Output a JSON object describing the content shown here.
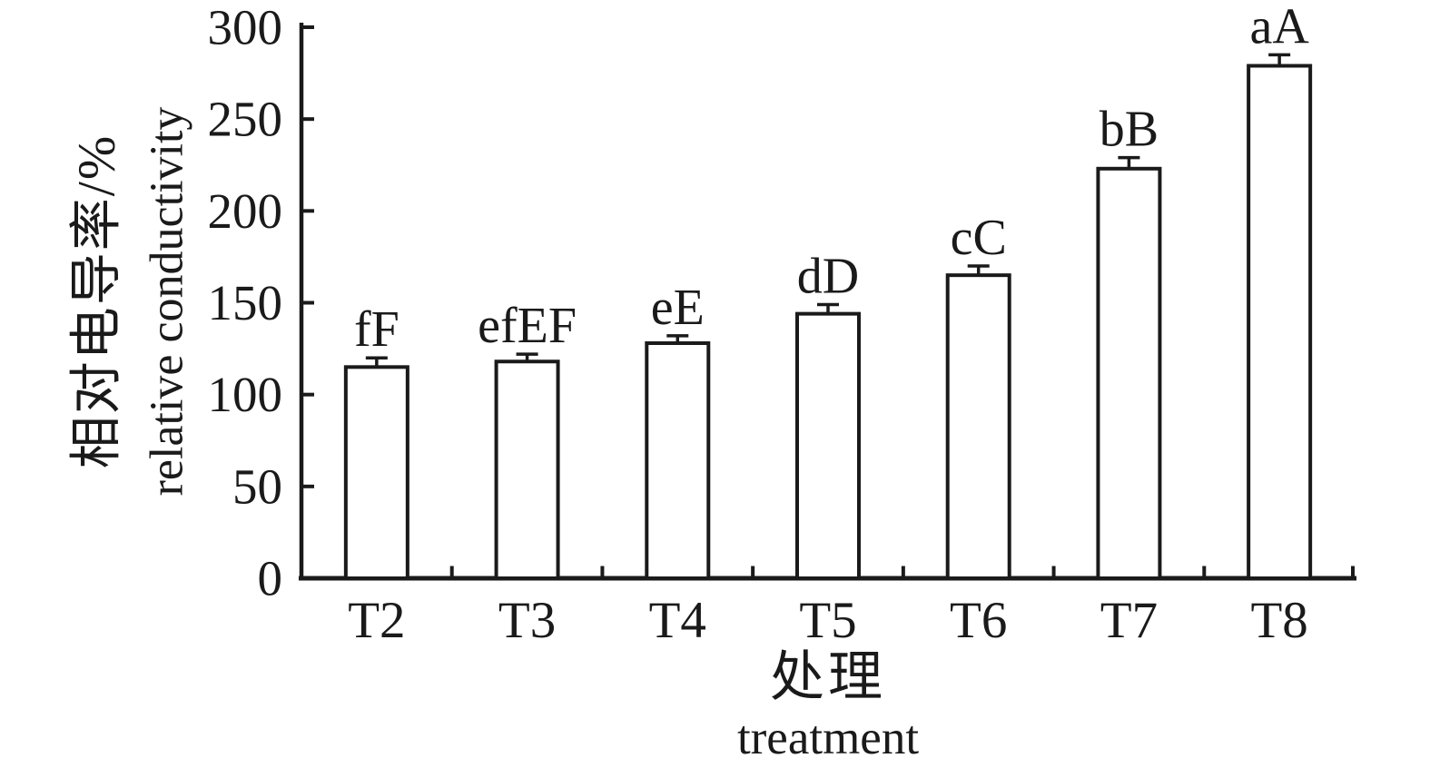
{
  "chart_data": {
    "type": "bar",
    "title": "",
    "categories": [
      "T2",
      "T3",
      "T4",
      "T5",
      "T6",
      "T7",
      "T8"
    ],
    "series": [
      {
        "name": "relative conductivity",
        "values": [
          115,
          118,
          128,
          144,
          165,
          223,
          279
        ],
        "errors_plus": [
          5,
          4,
          4,
          5,
          5,
          6,
          6
        ],
        "significance_letters": [
          "fF",
          "efEF",
          "eE",
          "dD",
          "cC",
          "bB",
          "aA"
        ]
      }
    ],
    "xlabel_zh": "处理",
    "xlabel_en": "treatment",
    "ylabel_zh": "相对电导率/%",
    "ylabel_en": "relative conductivity",
    "ylim": [
      0,
      300
    ],
    "yticks": [
      0,
      50,
      100,
      150,
      200,
      250,
      300
    ],
    "grid": "off",
    "legend_position": "none",
    "bar_fill_color": "#ffffff",
    "ink_color": "#1a1a1a"
  }
}
